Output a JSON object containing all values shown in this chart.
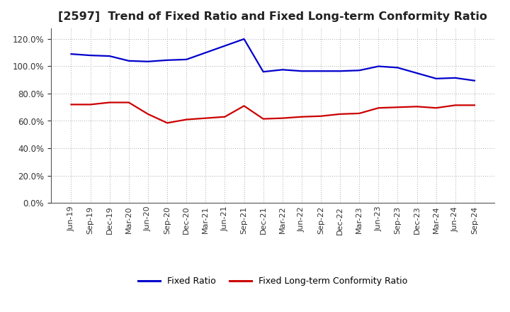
{
  "title": "[2597]  Trend of Fixed Ratio and Fixed Long-term Conformity Ratio",
  "x_labels": [
    "Jun-19",
    "Sep-19",
    "Dec-19",
    "Mar-20",
    "Jun-20",
    "Sep-20",
    "Dec-20",
    "Mar-21",
    "Jun-21",
    "Sep-21",
    "Dec-21",
    "Mar-22",
    "Jun-22",
    "Sep-22",
    "Dec-22",
    "Mar-23",
    "Jun-23",
    "Sep-23",
    "Dec-23",
    "Mar-24",
    "Jun-24",
    "Sep-24"
  ],
  "fixed_ratio": [
    109.0,
    108.0,
    107.5,
    104.0,
    103.5,
    104.5,
    105.0,
    110.0,
    115.0,
    120.0,
    96.0,
    97.5,
    96.5,
    96.5,
    96.5,
    97.0,
    100.0,
    99.0,
    95.0,
    91.0,
    91.5,
    89.5
  ],
  "fixed_lt_ratio": [
    72.0,
    72.0,
    73.5,
    73.5,
    65.0,
    58.5,
    61.0,
    62.0,
    63.0,
    71.0,
    61.5,
    62.0,
    63.0,
    63.5,
    65.0,
    65.5,
    69.5,
    70.0,
    70.5,
    69.5,
    71.5,
    71.5
  ],
  "fixed_ratio_color": "#0000CC",
  "fixed_lt_ratio_color": "#CC0000",
  "ylim": [
    0.0,
    128.0
  ],
  "yticks": [
    0.0,
    20.0,
    40.0,
    60.0,
    80.0,
    100.0,
    120.0
  ],
  "background_color": "#FFFFFF",
  "grid_color": "#AAAAAA",
  "title_fontsize": 11.5,
  "legend_fontsize": 9,
  "axis_fontsize": 8,
  "ytick_fontsize": 8.5
}
